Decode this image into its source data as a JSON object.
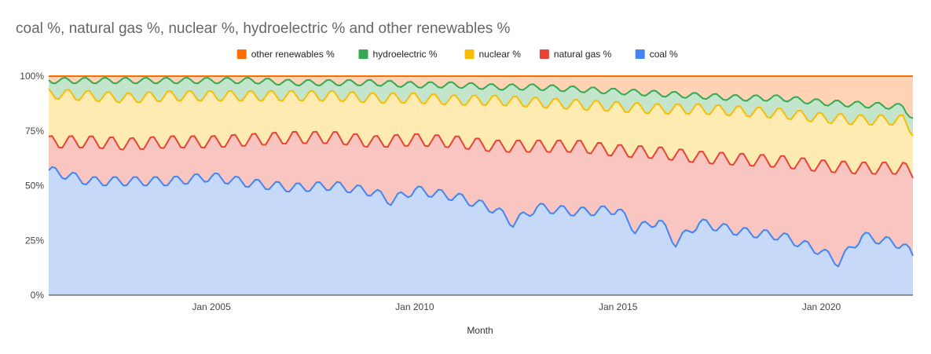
{
  "chart_data": {
    "type": "area",
    "stacked": true,
    "title": "coal %, natural gas %, nuclear %, hydroelectric % and other renewables %",
    "xlabel": "Month",
    "ylabel": "",
    "x_range": [
      "2001-01",
      "2022-04"
    ],
    "x_ticks": [
      "Jan 2005",
      "Jan 2010",
      "Jan 2015",
      "Jan 2020"
    ],
    "y_ticks": [
      "0%",
      "25%",
      "50%",
      "75%",
      "100%"
    ],
    "ylim": [
      0,
      100
    ],
    "grid": true,
    "legend_position": "top",
    "legend": [
      "other renewables %",
      "hydroelectric %",
      "nuclear %",
      "natural gas %",
      "coal %"
    ],
    "series_colors": {
      "coal %": "#4285f4",
      "natural gas %": "#ea4335",
      "nuclear %": "#fbbc04",
      "hydroelectric %": "#34a853",
      "other renewables %": "#ff6d01"
    },
    "fill_colors": {
      "coal %": "#c6d9f8",
      "natural gas %": "#f8c5c1",
      "nuclear %": "#feebb2",
      "hydroelectric %": "#c3e5cb",
      "other renewables %": "#ffd3b3"
    },
    "series_cumulative_points": [
      {
        "name": "coal %",
        "x": [
          "2001-01",
          "2002-01",
          "2003-01",
          "2004-01",
          "2005-01",
          "2006-01",
          "2007-01",
          "2008-01",
          "2009-01",
          "2009-06",
          "2010-01",
          "2011-01",
          "2012-01",
          "2012-06",
          "2013-01",
          "2014-01",
          "2015-01",
          "2015-06",
          "2016-01",
          "2016-06",
          "2017-01",
          "2018-01",
          "2019-01",
          "2020-01",
          "2020-06",
          "2021-01",
          "2022-01",
          "2022-04"
        ],
        "y": [
          57,
          52,
          52,
          52,
          54,
          51,
          49,
          50,
          47,
          43,
          48,
          45,
          39,
          33,
          40,
          38,
          39,
          30,
          34,
          24,
          33,
          29,
          27,
          20,
          15,
          27,
          23,
          18
        ]
      },
      {
        "name": "natural gas %",
        "x": [
          "2001-01",
          "2002-01",
          "2003-01",
          "2004-01",
          "2005-01",
          "2006-01",
          "2007-01",
          "2008-01",
          "2009-01",
          "2010-01",
          "2011-01",
          "2012-01",
          "2013-01",
          "2014-01",
          "2015-01",
          "2016-01",
          "2017-01",
          "2018-01",
          "2019-01",
          "2020-01",
          "2021-01",
          "2022-01",
          "2022-04"
        ],
        "y": [
          70,
          70,
          69,
          70,
          70,
          71,
          72,
          72,
          70,
          71,
          70,
          68,
          68,
          68,
          66,
          65,
          63,
          62,
          61,
          59,
          58,
          58,
          56
        ]
      },
      {
        "name": "nuclear %",
        "x": [
          "2001-01",
          "2002-01",
          "2003-01",
          "2004-01",
          "2005-01",
          "2006-01",
          "2007-01",
          "2008-01",
          "2009-01",
          "2010-01",
          "2011-01",
          "2012-01",
          "2013-01",
          "2014-01",
          "2015-01",
          "2016-01",
          "2017-01",
          "2018-01",
          "2019-01",
          "2020-01",
          "2021-01",
          "2022-01",
          "2022-04"
        ],
        "y": [
          92,
          91,
          90,
          91,
          91,
          91,
          91,
          91,
          90,
          90,
          89,
          89,
          88,
          87,
          86,
          85,
          85,
          84,
          83,
          81,
          80,
          80,
          75
        ]
      },
      {
        "name": "hydroelectric %",
        "x": [
          "2001-01",
          "2002-01",
          "2003-01",
          "2004-01",
          "2005-01",
          "2006-01",
          "2007-01",
          "2008-01",
          "2009-01",
          "2010-01",
          "2011-01",
          "2012-01",
          "2013-01",
          "2014-01",
          "2015-01",
          "2016-01",
          "2017-01",
          "2018-01",
          "2019-01",
          "2020-01",
          "2021-01",
          "2022-01",
          "2022-04"
        ],
        "y": [
          98,
          98,
          98,
          98,
          98,
          98,
          97,
          97,
          97,
          96,
          96,
          95,
          95,
          94,
          93,
          92,
          91,
          90,
          90,
          88,
          87,
          86,
          81
        ]
      },
      {
        "name": "other renewables %",
        "x": [
          "2001-01",
          "2022-04"
        ],
        "y": [
          100,
          100
        ]
      }
    ]
  }
}
